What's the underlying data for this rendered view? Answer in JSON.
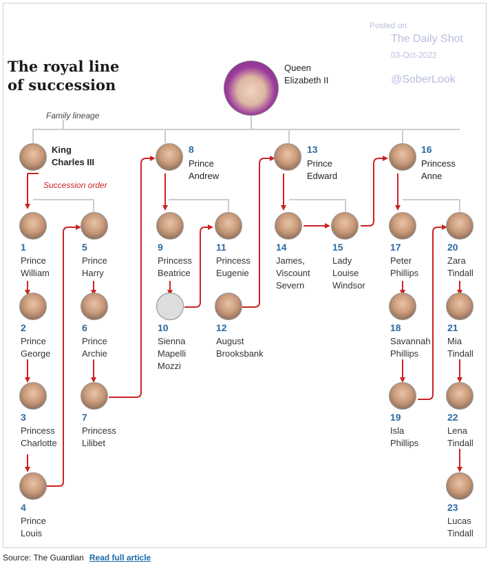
{
  "title": "The royal line of succession",
  "watermark": {
    "posted_on": "Posted on",
    "site": "The Daily Shot",
    "date": "03-Oct-2022",
    "handle": "@SoberLook"
  },
  "legend": {
    "family_lineage": "Family lineage",
    "succession_order": "Succession order"
  },
  "colors": {
    "lineage": "#cccccc",
    "succession": "#cc2222",
    "number": "#2b6aa3"
  },
  "root": {
    "name": "Queen Elizabeth II",
    "line1": "Queen",
    "line2": "Elizabeth II"
  },
  "heads": [
    {
      "num": "",
      "line1": "King",
      "line2": "Charles III"
    },
    {
      "num": "8",
      "line1": "Prince",
      "line2": "Andrew"
    },
    {
      "num": "13",
      "line1": "Prince",
      "line2": "Edward"
    },
    {
      "num": "16",
      "line1": "Princess",
      "line2": "Anne"
    }
  ],
  "people": [
    {
      "num": "1",
      "line1": "Prince",
      "line2": "William",
      "line3": ""
    },
    {
      "num": "2",
      "line1": "Prince",
      "line2": "George",
      "line3": ""
    },
    {
      "num": "3",
      "line1": "Princess",
      "line2": "Charlotte",
      "line3": ""
    },
    {
      "num": "4",
      "line1": "Prince",
      "line2": "Louis",
      "line3": ""
    },
    {
      "num": "5",
      "line1": "Prince",
      "line2": "Harry",
      "line3": ""
    },
    {
      "num": "6",
      "line1": "Prince",
      "line2": "Archie",
      "line3": ""
    },
    {
      "num": "7",
      "line1": "Princess",
      "line2": "Lilibet",
      "line3": ""
    },
    {
      "num": "9",
      "line1": "Princess",
      "line2": "Beatrice",
      "line3": ""
    },
    {
      "num": "10",
      "line1": "Sienna",
      "line2": "Mapelli",
      "line3": "Mozzi"
    },
    {
      "num": "11",
      "line1": "Princess",
      "line2": "Eugenie",
      "line3": ""
    },
    {
      "num": "12",
      "line1": "August",
      "line2": "Brooksbank",
      "line3": ""
    },
    {
      "num": "14",
      "line1": "James,",
      "line2": "Viscount",
      "line3": "Severn"
    },
    {
      "num": "15",
      "line1": "Lady",
      "line2": "Louise",
      "line3": "Windsor"
    },
    {
      "num": "17",
      "line1": "Peter",
      "line2": "Phillips",
      "line3": ""
    },
    {
      "num": "18",
      "line1": "Savannah",
      "line2": "Phillips",
      "line3": ""
    },
    {
      "num": "19",
      "line1": "Isla",
      "line2": "Phillips",
      "line3": ""
    },
    {
      "num": "20",
      "line1": "Zara",
      "line2": "Tindall",
      "line3": ""
    },
    {
      "num": "21",
      "line1": "Mia",
      "line2": "Tindall",
      "line3": ""
    },
    {
      "num": "22",
      "line1": "Lena",
      "line2": "Tindall",
      "line3": ""
    },
    {
      "num": "23",
      "line1": "Lucas",
      "line2": "Tindall",
      "line3": ""
    }
  ],
  "footer": {
    "source": "Source: The Guardian",
    "link": "Read full article"
  }
}
